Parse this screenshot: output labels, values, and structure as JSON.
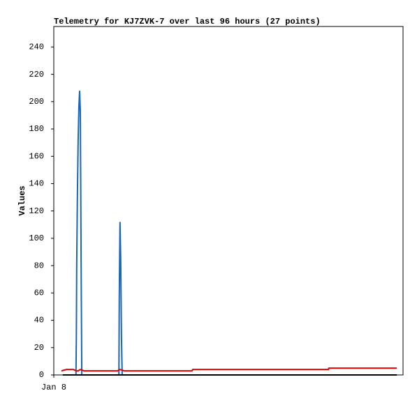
{
  "chart_data": {
    "type": "line",
    "title": "Telemetry for KJ7ZVK-7 over last 96 hours (27 points)",
    "y_label": "Values",
    "xlim": [
      0,
      96
    ],
    "xticks": [
      {
        "value": 0,
        "label": "Jan 8"
      }
    ],
    "ylim": [
      0,
      255
    ],
    "yticks": [
      0,
      20,
      40,
      60,
      80,
      100,
      120,
      140,
      160,
      180,
      200,
      220,
      240
    ],
    "grid": false,
    "series": [
      {
        "color": "#1a66b8",
        "x": [
          2.5,
          6.1,
          6.2,
          6.3,
          6.5,
          6.7,
          6.9,
          7.1,
          7.3,
          7.5,
          7.7,
          17.9,
          18.0,
          18.2,
          18.4,
          18.6,
          18.8,
          94.3
        ],
        "values": [
          0,
          0,
          27,
          80,
          133,
          172,
          196,
          208,
          193,
          88,
          0,
          0,
          56,
          112,
          84,
          28,
          0,
          0
        ]
      },
      {
        "color": "#e00000",
        "x": [
          2.1,
          3.5,
          5.4,
          6.1,
          6.7,
          7.3,
          8.3,
          17.5,
          18.2,
          19.4,
          38.0,
          38.2,
          75.5,
          75.6,
          94.3
        ],
        "values": [
          3,
          4,
          4,
          3,
          3,
          4,
          3,
          3,
          4,
          3,
          3,
          4,
          4,
          5,
          5
        ]
      },
      {
        "color": "#000000",
        "x": [
          2.5,
          94.3
        ],
        "values": [
          0,
          0
        ]
      }
    ]
  }
}
